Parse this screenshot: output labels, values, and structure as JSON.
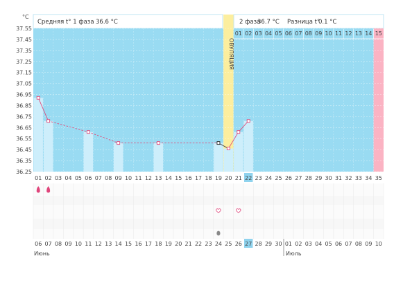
{
  "header": {
    "unit": "°C",
    "phase1_label": "Средняя t° 1 фаза",
    "phase1_value": "36.6 °C",
    "phase2_label": "2 фаза",
    "phase2_value": "36.7 °C",
    "diff_label": "Разница t°",
    "diff_value": "0.1 °C",
    "ovulation_text": "ОВУЛЯЦИЯ",
    "sun_icon": "sun-icon"
  },
  "months": {
    "first": "Июнь",
    "second": "Июль"
  },
  "colors": {
    "background_blue": "#99dbf2",
    "ovulation_band": "#fcee9e",
    "final_column": "#fbb3c3",
    "line": "#e04a7a",
    "bar": "#cdeefb",
    "highlight_cell": "#8fd3ee",
    "weekend_red": "#d0262c"
  },
  "chart_data": {
    "type": "line",
    "x_cycle_days": [
      "01",
      "02",
      "03",
      "04",
      "05",
      "06",
      "07",
      "08",
      "09",
      "10",
      "11",
      "12",
      "13",
      "14",
      "15",
      "16",
      "17",
      "18",
      "19",
      "20",
      "21",
      "22",
      "23",
      "24",
      "25",
      "26",
      "27",
      "28",
      "29",
      "30",
      "31",
      "32",
      "33",
      "34",
      "35"
    ],
    "phase2_days": [
      "01",
      "02",
      "03",
      "04",
      "05",
      "06",
      "07",
      "08",
      "09",
      "10",
      "11",
      "12",
      "13",
      "14",
      "15"
    ],
    "ovulation_day": 20,
    "highlighted_cycle_day": "22",
    "yticks": [
      "37.55",
      "37.45",
      "37.35",
      "37.25",
      "37.15",
      "37.05",
      "36.95",
      "36.85",
      "36.75",
      "36.65",
      "36.55",
      "36.45",
      "36.35",
      "36.25"
    ],
    "ylim": [
      36.25,
      37.55
    ],
    "points": [
      {
        "day": 1,
        "t": 36.92
      },
      {
        "day": 2,
        "t": 36.71
      },
      {
        "day": 6,
        "t": 36.61
      },
      {
        "day": 9,
        "t": 36.51
      },
      {
        "day": 13,
        "t": 36.51
      },
      {
        "day": 19,
        "t": 36.51
      },
      {
        "day": 20,
        "t": 36.46
      },
      {
        "day": 21,
        "t": 36.61
      },
      {
        "day": 22,
        "t": 36.71
      }
    ],
    "markers": {
      "drops_days": [
        1,
        2
      ],
      "heart_days": [
        19,
        21
      ],
      "egg_days": [
        19
      ]
    },
    "calendar_dates": [
      "06",
      "07",
      "08",
      "09",
      "10",
      "11",
      "12",
      "13",
      "14",
      "15",
      "16",
      "17",
      "18",
      "19",
      "20",
      "21",
      "22",
      "23",
      "24",
      "25",
      "26",
      "27",
      "28",
      "29",
      "30",
      "01",
      "02",
      "03",
      "04",
      "05",
      "06",
      "07",
      "08",
      "09",
      "10"
    ],
    "calendar_red_indices": [
      2,
      3,
      9,
      10,
      16,
      17,
      23,
      24,
      30,
      31
    ],
    "highlighted_date": "27"
  }
}
